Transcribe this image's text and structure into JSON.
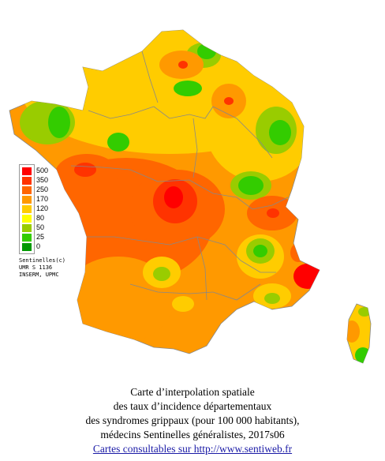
{
  "legend": {
    "items": [
      {
        "label": "500",
        "color": "#ff0000"
      },
      {
        "label": "350",
        "color": "#ff3300"
      },
      {
        "label": "250",
        "color": "#ff6600"
      },
      {
        "label": "170",
        "color": "#ff9900"
      },
      {
        "label": "120",
        "color": "#ffcc00"
      },
      {
        "label": "80",
        "color": "#ffff00"
      },
      {
        "label": "50",
        "color": "#99cc00"
      },
      {
        "label": "25",
        "color": "#33cc00"
      },
      {
        "label": "0",
        "color": "#009900"
      }
    ]
  },
  "credits": {
    "line1": "Sentinelles(c)",
    "line2": "UMR S 1136",
    "line3": "INSERM, UPMC"
  },
  "caption": {
    "line1": "Carte d’interpolation spatiale",
    "line2": "des taux d’incidence départementaux",
    "line3": "des syndromes grippaux (pour 100 000 habitants),",
    "line4": "médecins Sentinelles généralistes, 2017s06",
    "link": "Cartes consultables sur http://www.sentiweb.fr"
  },
  "colors": {
    "high": "#ff0000",
    "orange": "#ff6600",
    "light_orange": "#ff9900",
    "yellow": "#ffcc00",
    "green": "#33cc00",
    "dark_green": "#009900",
    "border": "#888888"
  }
}
